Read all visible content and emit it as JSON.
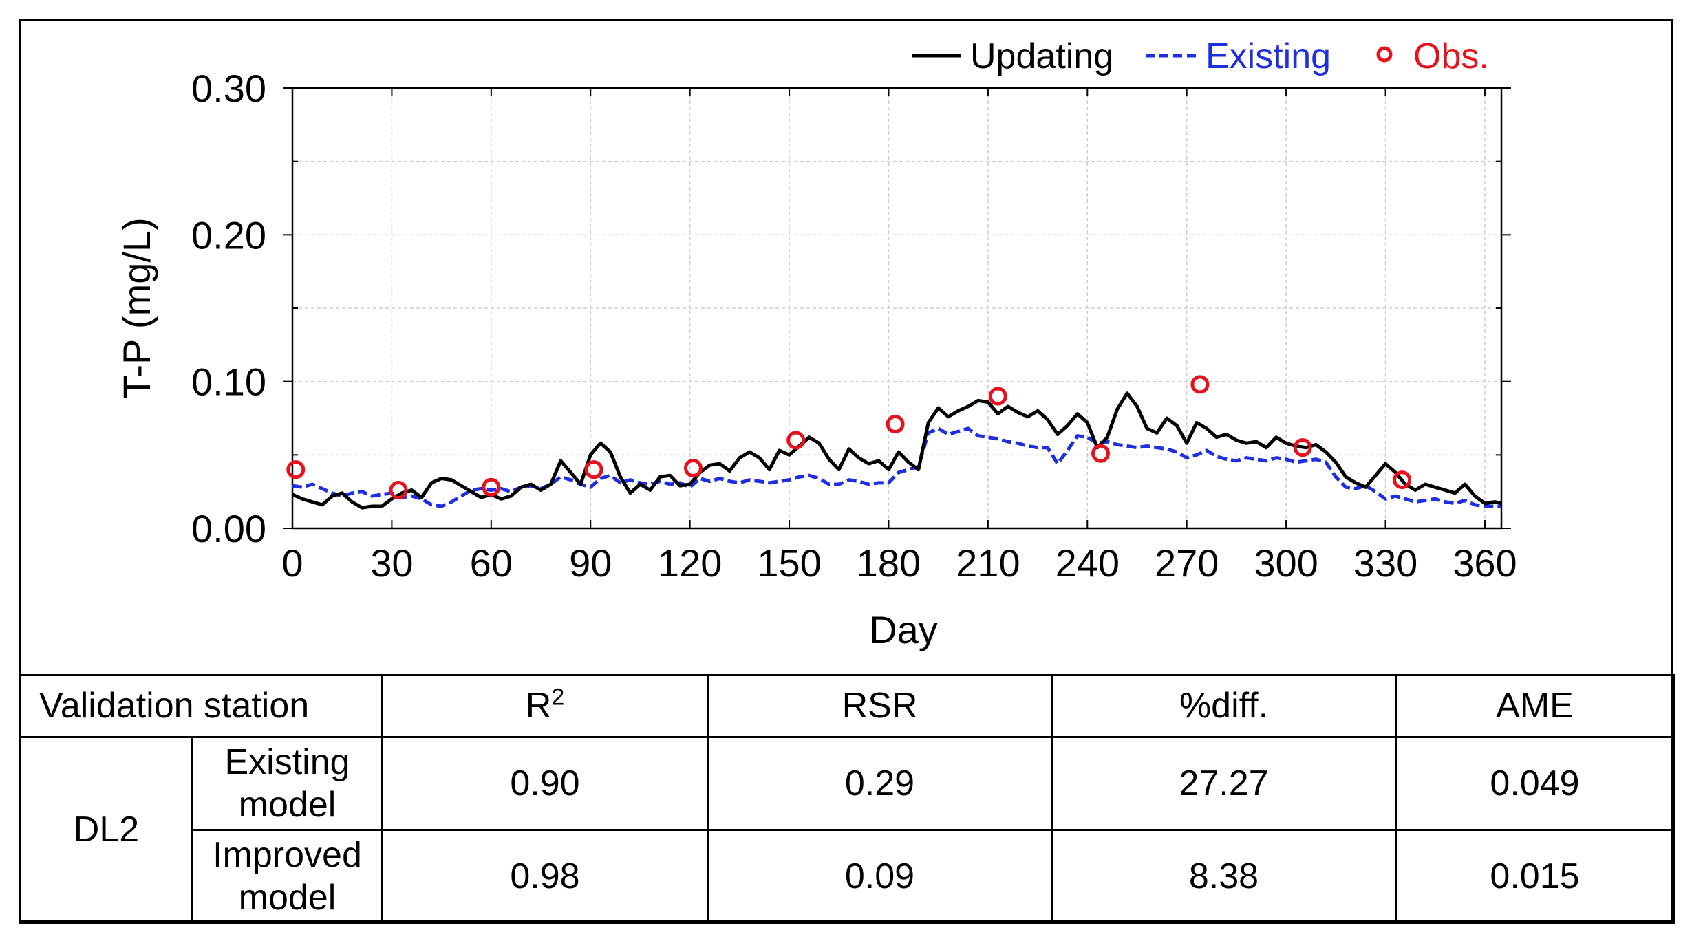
{
  "chart_data": {
    "type": "line",
    "ylabel": "T-P (mg/L)",
    "xlabel": "Day",
    "xlim": [
      0,
      365
    ],
    "ylim": [
      0,
      0.3
    ],
    "x_ticks": [
      0,
      30,
      60,
      90,
      120,
      150,
      180,
      210,
      240,
      270,
      300,
      330,
      360
    ],
    "x_tick_labels": [
      "0",
      "30",
      "60",
      "90",
      "120",
      "150",
      "180",
      "210",
      "240",
      "270",
      "300",
      "330",
      "360"
    ],
    "y_ticks": [
      0,
      0.1,
      0.2,
      0.3
    ],
    "y_tick_labels": [
      "0.00",
      "0.10",
      "0.20",
      "0.30"
    ],
    "grid": true,
    "legend_position": "top-right",
    "series": [
      {
        "name": "Updating",
        "style": "solid",
        "color": "#000000",
        "x": [
          0,
          3,
          6,
          9,
          12,
          15,
          18,
          21,
          24,
          27,
          30,
          33,
          36,
          39,
          42,
          45,
          48,
          51,
          54,
          57,
          60,
          63,
          66,
          69,
          72,
          75,
          78,
          81,
          84,
          87,
          90,
          93,
          96,
          99,
          102,
          105,
          108,
          111,
          114,
          117,
          120,
          123,
          126,
          129,
          132,
          135,
          138,
          141,
          144,
          147,
          150,
          153,
          156,
          159,
          162,
          165,
          168,
          171,
          174,
          177,
          180,
          183,
          186,
          189,
          192,
          195,
          198,
          201,
          204,
          207,
          210,
          213,
          216,
          219,
          222,
          225,
          228,
          231,
          234,
          237,
          240,
          243,
          246,
          249,
          252,
          255,
          258,
          261,
          264,
          267,
          270,
          273,
          276,
          279,
          282,
          285,
          288,
          291,
          294,
          297,
          300,
          303,
          306,
          309,
          312,
          315,
          318,
          321,
          324,
          327,
          330,
          333,
          336,
          339,
          342,
          345,
          348,
          351,
          354,
          357,
          360,
          363,
          365
        ],
        "values": [
          0.023,
          0.02,
          0.018,
          0.016,
          0.022,
          0.024,
          0.018,
          0.014,
          0.015,
          0.015,
          0.02,
          0.024,
          0.026,
          0.021,
          0.031,
          0.034,
          0.033,
          0.029,
          0.025,
          0.021,
          0.023,
          0.02,
          0.022,
          0.028,
          0.03,
          0.026,
          0.03,
          0.046,
          0.038,
          0.03,
          0.05,
          0.058,
          0.052,
          0.035,
          0.024,
          0.03,
          0.026,
          0.035,
          0.036,
          0.029,
          0.03,
          0.038,
          0.043,
          0.044,
          0.039,
          0.048,
          0.052,
          0.048,
          0.04,
          0.053,
          0.05,
          0.056,
          0.062,
          0.058,
          0.047,
          0.04,
          0.054,
          0.048,
          0.044,
          0.046,
          0.04,
          0.052,
          0.045,
          0.04,
          0.072,
          0.082,
          0.076,
          0.08,
          0.083,
          0.087,
          0.086,
          0.078,
          0.083,
          0.079,
          0.076,
          0.08,
          0.074,
          0.064,
          0.07,
          0.078,
          0.072,
          0.055,
          0.062,
          0.081,
          0.092,
          0.083,
          0.068,
          0.065,
          0.075,
          0.07,
          0.058,
          0.072,
          0.068,
          0.062,
          0.064,
          0.06,
          0.058,
          0.059,
          0.055,
          0.062,
          0.058,
          0.056,
          0.055,
          0.057,
          0.052,
          0.045,
          0.035,
          0.031,
          0.028,
          0.036,
          0.044,
          0.038,
          0.03,
          0.026,
          0.03,
          0.028,
          0.026,
          0.024,
          0.03,
          0.022,
          0.017,
          0.018,
          0.017
        ]
      },
      {
        "name": "Existing",
        "style": "dashed",
        "color": "#1f2fe0",
        "x": [
          0,
          3,
          6,
          9,
          12,
          15,
          18,
          21,
          24,
          27,
          30,
          33,
          36,
          39,
          42,
          45,
          48,
          51,
          54,
          57,
          60,
          63,
          66,
          69,
          72,
          75,
          78,
          81,
          84,
          87,
          90,
          93,
          96,
          99,
          102,
          105,
          108,
          111,
          114,
          117,
          120,
          123,
          126,
          129,
          132,
          135,
          138,
          141,
          144,
          147,
          150,
          153,
          156,
          159,
          162,
          165,
          168,
          171,
          174,
          177,
          180,
          183,
          186,
          189,
          192,
          195,
          198,
          201,
          204,
          207,
          210,
          213,
          216,
          219,
          222,
          225,
          228,
          231,
          234,
          237,
          240,
          243,
          246,
          249,
          252,
          255,
          258,
          261,
          264,
          267,
          270,
          273,
          276,
          279,
          282,
          285,
          288,
          291,
          294,
          297,
          300,
          303,
          306,
          309,
          312,
          315,
          318,
          321,
          324,
          327,
          330,
          333,
          336,
          339,
          342,
          345,
          348,
          351,
          354,
          357,
          360,
          363,
          365
        ],
        "values": [
          0.029,
          0.028,
          0.03,
          0.027,
          0.024,
          0.022,
          0.024,
          0.025,
          0.022,
          0.023,
          0.024,
          0.021,
          0.022,
          0.02,
          0.016,
          0.015,
          0.018,
          0.022,
          0.026,
          0.027,
          0.026,
          0.027,
          0.025,
          0.028,
          0.029,
          0.027,
          0.03,
          0.035,
          0.033,
          0.03,
          0.028,
          0.034,
          0.036,
          0.031,
          0.033,
          0.031,
          0.03,
          0.032,
          0.03,
          0.031,
          0.028,
          0.034,
          0.032,
          0.034,
          0.032,
          0.031,
          0.033,
          0.032,
          0.031,
          0.032,
          0.033,
          0.035,
          0.036,
          0.034,
          0.03,
          0.03,
          0.033,
          0.032,
          0.03,
          0.031,
          0.031,
          0.038,
          0.04,
          0.042,
          0.065,
          0.068,
          0.064,
          0.066,
          0.068,
          0.063,
          0.062,
          0.061,
          0.059,
          0.058,
          0.056,
          0.055,
          0.055,
          0.044,
          0.053,
          0.063,
          0.062,
          0.058,
          0.059,
          0.057,
          0.056,
          0.055,
          0.056,
          0.055,
          0.054,
          0.052,
          0.048,
          0.05,
          0.053,
          0.049,
          0.047,
          0.046,
          0.048,
          0.047,
          0.046,
          0.048,
          0.047,
          0.045,
          0.046,
          0.047,
          0.045,
          0.035,
          0.028,
          0.027,
          0.029,
          0.025,
          0.02,
          0.022,
          0.02,
          0.018,
          0.019,
          0.02,
          0.018,
          0.017,
          0.019,
          0.016,
          0.015,
          0.015,
          0.015
        ]
      },
      {
        "name": "Obs.",
        "style": "marker",
        "color": "#e8101a",
        "x": [
          1,
          32,
          60,
          91,
          121,
          152,
          182,
          213,
          244,
          274,
          305,
          335
        ],
        "values": [
          0.04,
          0.026,
          0.028,
          0.04,
          0.041,
          0.06,
          0.071,
          0.09,
          0.051,
          0.098,
          0.055,
          0.033
        ]
      }
    ]
  },
  "table": {
    "header": {
      "station": "Validation station",
      "r2_base": "R",
      "r2_sup": "2",
      "rsr": "RSR",
      "diff": "%diff.",
      "ame": "AME"
    },
    "station_name": "DL2",
    "rows": [
      {
        "model_line1": "Existing",
        "model_line2": "model",
        "r2": "0.90",
        "rsr": "0.29",
        "diff": "27.27",
        "ame": "0.049"
      },
      {
        "model_line1": "Improved",
        "model_line2": "model",
        "r2": "0.98",
        "rsr": "0.09",
        "diff": "8.38",
        "ame": "0.015"
      }
    ]
  }
}
